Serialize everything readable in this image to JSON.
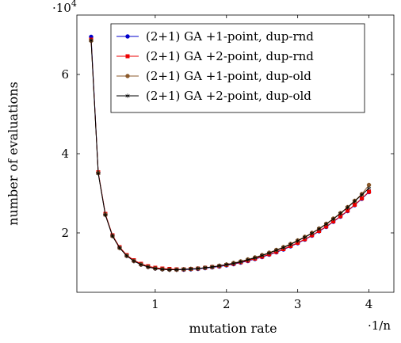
{
  "chart_data": {
    "type": "line",
    "xlabel": "mutation rate",
    "ylabel": "number of evaluations",
    "x_multiplier": "·1/n",
    "y_multiplier_base": "·10",
    "y_multiplier_exp": "4",
    "xlim": [
      -0.1,
      4.35
    ],
    "ylim": [
      0.5,
      7.5
    ],
    "x_ticks": [
      1,
      2,
      3,
      4
    ],
    "x_tick_labels": [
      "1",
      "2",
      "3",
      "4"
    ],
    "y_ticks": [
      2,
      4,
      6
    ],
    "y_tick_labels": [
      "2",
      "4",
      "6"
    ],
    "grid": false,
    "legend_position": "top-right",
    "x": [
      0.1,
      0.2,
      0.3,
      0.4,
      0.5,
      0.6,
      0.7,
      0.8,
      0.9,
      1.0,
      1.1,
      1.2,
      1.3,
      1.4,
      1.5,
      1.6,
      1.7,
      1.8,
      1.9,
      2.0,
      2.1,
      2.2,
      2.3,
      2.4,
      2.5,
      2.6,
      2.7,
      2.8,
      2.9,
      3.0,
      3.1,
      3.2,
      3.3,
      3.4,
      3.5,
      3.6,
      3.7,
      3.8,
      3.9,
      4.0
    ],
    "series": [
      {
        "name": "(2+1) GA +1-point, dup-rnd",
        "color": "#0000cc",
        "marker": "circle",
        "values": [
          6.95,
          3.52,
          2.47,
          1.93,
          1.63,
          1.42,
          1.29,
          1.2,
          1.14,
          1.1,
          1.08,
          1.07,
          1.07,
          1.07,
          1.08,
          1.09,
          1.11,
          1.13,
          1.15,
          1.18,
          1.21,
          1.25,
          1.29,
          1.34,
          1.39,
          1.45,
          1.51,
          1.58,
          1.66,
          1.74,
          1.83,
          1.93,
          2.04,
          2.15,
          2.28,
          2.41,
          2.55,
          2.7,
          2.86,
          3.03
        ]
      },
      {
        "name": "(2+1) GA +2-point, dup-rnd",
        "color": "#ee0000",
        "marker": "square",
        "values": [
          6.88,
          3.53,
          2.48,
          1.94,
          1.64,
          1.44,
          1.31,
          1.22,
          1.16,
          1.12,
          1.1,
          1.09,
          1.08,
          1.08,
          1.09,
          1.1,
          1.12,
          1.14,
          1.16,
          1.19,
          1.22,
          1.26,
          1.3,
          1.35,
          1.4,
          1.46,
          1.52,
          1.59,
          1.67,
          1.75,
          1.84,
          1.94,
          2.05,
          2.16,
          2.29,
          2.42,
          2.56,
          2.71,
          2.87,
          3.04
        ]
      },
      {
        "name": "(2+1) GA +1-point, dup-old",
        "color": "#8b5a2b",
        "marker": "circle",
        "values": [
          6.85,
          3.51,
          2.46,
          1.92,
          1.62,
          1.42,
          1.29,
          1.2,
          1.14,
          1.1,
          1.08,
          1.07,
          1.07,
          1.08,
          1.09,
          1.1,
          1.12,
          1.14,
          1.17,
          1.2,
          1.24,
          1.28,
          1.33,
          1.38,
          1.44,
          1.5,
          1.57,
          1.64,
          1.72,
          1.81,
          1.9,
          2.0,
          2.11,
          2.23,
          2.36,
          2.5,
          2.65,
          2.81,
          2.98,
          3.21
        ]
      },
      {
        "name": "(2+1) GA +2-point, dup-old",
        "color": "#000000",
        "marker": "star",
        "values": [
          6.86,
          3.5,
          2.45,
          1.92,
          1.62,
          1.42,
          1.29,
          1.2,
          1.14,
          1.1,
          1.08,
          1.07,
          1.07,
          1.08,
          1.09,
          1.1,
          1.12,
          1.14,
          1.17,
          1.2,
          1.23,
          1.27,
          1.32,
          1.37,
          1.43,
          1.49,
          1.56,
          1.63,
          1.71,
          1.8,
          1.89,
          1.99,
          2.1,
          2.22,
          2.35,
          2.49,
          2.64,
          2.8,
          2.96,
          3.13
        ]
      }
    ]
  }
}
